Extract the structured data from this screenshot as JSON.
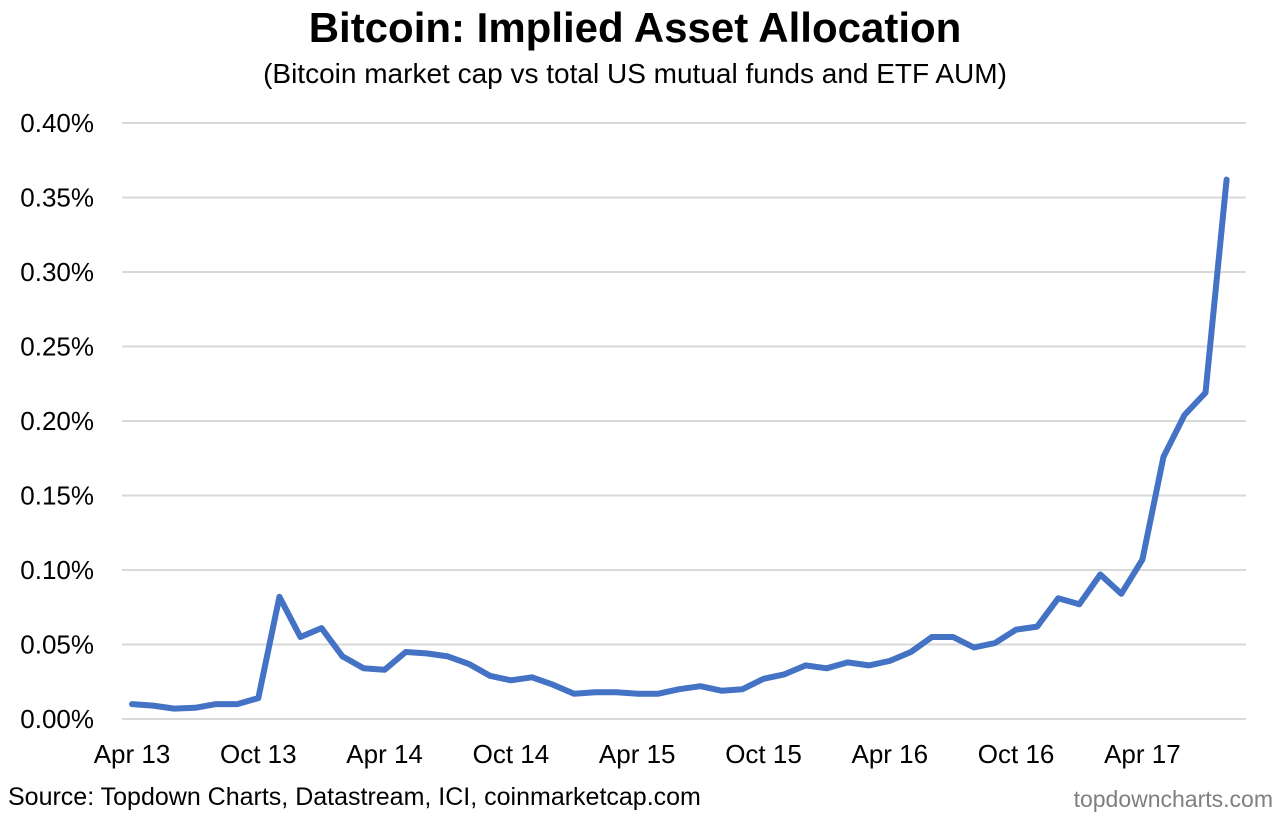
{
  "chart_data": {
    "type": "line",
    "title": "Bitcoin: Implied Asset Allocation",
    "subtitle": "(Bitcoin market cap vs total US mutual funds and ETF AUM)",
    "xlabel": "",
    "ylabel": "",
    "ylim": [
      0,
      0.4
    ],
    "y_ticks": [
      "0.00%",
      "0.05%",
      "0.10%",
      "0.15%",
      "0.20%",
      "0.25%",
      "0.30%",
      "0.35%",
      "0.40%"
    ],
    "x_ticks": [
      "Apr 13",
      "Oct 13",
      "Apr 14",
      "Oct 14",
      "Apr 15",
      "Oct 15",
      "Apr 16",
      "Oct 16",
      "Apr 17"
    ],
    "grid": true,
    "legend": "none",
    "line_color": "#4472C4",
    "series": [
      {
        "values": [
          0.01,
          0.009,
          0.007,
          0.0075,
          0.01,
          0.01,
          0.014,
          0.082,
          0.055,
          0.061,
          0.042,
          0.034,
          0.033,
          0.045,
          0.044,
          0.042,
          0.037,
          0.029,
          0.026,
          0.028,
          0.023,
          0.017,
          0.018,
          0.018,
          0.017,
          0.017,
          0.02,
          0.022,
          0.019,
          0.02,
          0.027,
          0.03,
          0.036,
          0.034,
          0.038,
          0.036,
          0.039,
          0.045,
          0.055,
          0.055,
          0.048,
          0.051,
          0.06,
          0.062,
          0.081,
          0.077,
          0.097,
          0.084,
          0.107,
          0.176,
          0.204,
          0.219,
          0.362
        ]
      }
    ]
  },
  "source": "Source: Topdown Charts, Datastream, ICI, coinmarketcap.com",
  "watermark": "topdowncharts.com"
}
